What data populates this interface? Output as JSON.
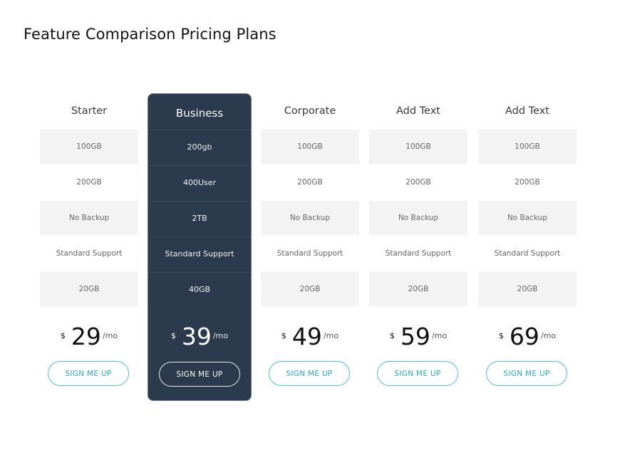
{
  "title": "Feature Comparison Pricing Plans",
  "plans": [
    {
      "name": "Starter",
      "features": [
        "100GB",
        "200GB",
        "No Backup",
        "Standard Support",
        "20GB"
      ],
      "currency": "$",
      "price": "29",
      "period": "/mo",
      "button": "SIGN ME UP"
    },
    {
      "name": "Business",
      "features": [
        "200gb",
        "400User",
        "2TB",
        "Standard Support",
        "40GB"
      ],
      "currency": "$",
      "price": "39",
      "period": "/mo",
      "button": "SIGN ME UP"
    },
    {
      "name": "Corporate",
      "features": [
        "100GB",
        "200GB",
        "No Backup",
        "Standard Support",
        "20GB"
      ],
      "currency": "$",
      "price": "49",
      "period": "/mo",
      "button": "SIGN ME UP"
    },
    {
      "name": "Add Text",
      "features": [
        "100GB",
        "200GB",
        "No Backup",
        "Standard Support",
        "20GB"
      ],
      "currency": "$",
      "price": "59",
      "period": "/mo",
      "button": "SIGN ME UP"
    },
    {
      "name": "Add Text",
      "features": [
        "100GB",
        "200GB",
        "No Backup",
        "Standard Support",
        "20GB"
      ],
      "currency": "$",
      "price": "69",
      "period": "/mo",
      "button": "SIGN ME UP"
    }
  ],
  "colors": {
    "featured_background": "#2b3a4c",
    "button_accent": "#4fbfd4",
    "row_shade": "#f3f3f3"
  }
}
